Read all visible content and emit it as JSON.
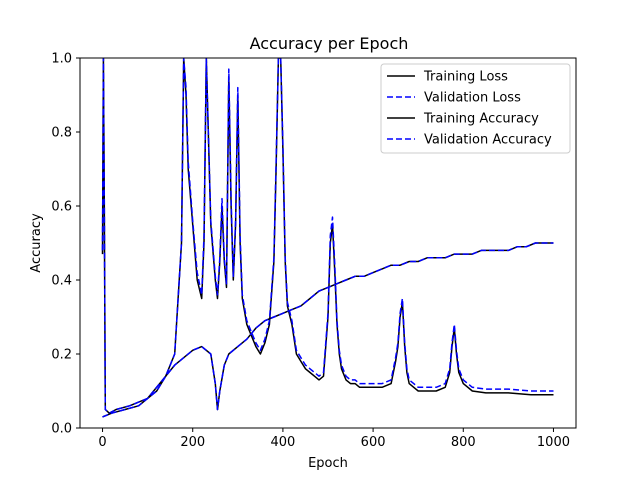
{
  "chart_data": {
    "type": "line",
    "title": "Accuracy per Epoch",
    "xlabel": "Epoch",
    "ylabel": "Accuracy",
    "xlim": [
      -50,
      1050
    ],
    "ylim": [
      0.0,
      1.0
    ],
    "xticks": [
      0,
      200,
      400,
      600,
      800,
      1000
    ],
    "yticks": [
      0.0,
      0.2,
      0.4,
      0.6,
      0.8,
      1.0
    ],
    "xtick_labels": [
      "0",
      "200",
      "400",
      "600",
      "800",
      "1000"
    ],
    "ytick_labels": [
      "0.0",
      "0.2",
      "0.4",
      "0.6",
      "0.8",
      "1.0"
    ],
    "grid": false,
    "legend_position": "top-right",
    "legend": [
      "Training Loss",
      "Validation Loss",
      "Training Accuracy",
      "Validation Accuracy"
    ],
    "series": [
      {
        "name": "Training Loss",
        "color": "#000000",
        "style": "solid",
        "x": [
          0,
          2,
          4,
          6,
          15,
          30,
          60,
          100,
          140,
          160,
          175,
          180,
          185,
          190,
          200,
          210,
          220,
          225,
          230,
          240,
          250,
          255,
          260,
          265,
          270,
          275,
          280,
          285,
          290,
          295,
          300,
          305,
          310,
          320,
          330,
          340,
          350,
          360,
          370,
          380,
          385,
          390,
          395,
          400,
          405,
          410,
          420,
          430,
          440,
          450,
          460,
          470,
          480,
          490,
          500,
          505,
          510,
          515,
          520,
          525,
          530,
          540,
          550,
          560,
          570,
          580,
          600,
          620,
          640,
          650,
          655,
          660,
          665,
          670,
          675,
          680,
          690,
          700,
          720,
          740,
          760,
          770,
          775,
          780,
          785,
          790,
          800,
          820,
          850,
          880,
          900,
          950,
          1000
        ],
        "y": [
          0.47,
          1.0,
          0.6,
          0.05,
          0.04,
          0.05,
          0.06,
          0.08,
          0.14,
          0.2,
          0.5,
          1.0,
          0.9,
          0.7,
          0.55,
          0.4,
          0.35,
          0.5,
          1.0,
          0.55,
          0.4,
          0.35,
          0.45,
          0.6,
          0.45,
          0.38,
          0.95,
          0.6,
          0.4,
          0.55,
          0.9,
          0.5,
          0.35,
          0.28,
          0.25,
          0.22,
          0.2,
          0.23,
          0.28,
          0.45,
          0.7,
          1.0,
          1.0,
          0.75,
          0.45,
          0.33,
          0.28,
          0.2,
          0.18,
          0.16,
          0.15,
          0.14,
          0.13,
          0.14,
          0.3,
          0.5,
          0.55,
          0.42,
          0.28,
          0.2,
          0.16,
          0.13,
          0.12,
          0.12,
          0.11,
          0.11,
          0.11,
          0.11,
          0.12,
          0.18,
          0.22,
          0.3,
          0.34,
          0.22,
          0.15,
          0.12,
          0.11,
          0.1,
          0.1,
          0.1,
          0.11,
          0.15,
          0.22,
          0.27,
          0.2,
          0.15,
          0.12,
          0.1,
          0.095,
          0.095,
          0.095,
          0.09,
          0.09
        ]
      },
      {
        "name": "Validation Loss",
        "color": "#0000ff",
        "style": "dashed",
        "x": [
          0,
          2,
          4,
          6,
          15,
          30,
          60,
          100,
          140,
          160,
          175,
          180,
          185,
          190,
          200,
          210,
          220,
          225,
          230,
          240,
          250,
          255,
          260,
          265,
          270,
          275,
          280,
          285,
          290,
          295,
          300,
          305,
          310,
          320,
          330,
          340,
          350,
          360,
          370,
          380,
          385,
          390,
          395,
          400,
          405,
          410,
          420,
          430,
          440,
          450,
          460,
          470,
          480,
          490,
          500,
          505,
          510,
          515,
          520,
          525,
          530,
          540,
          550,
          560,
          570,
          580,
          600,
          620,
          640,
          650,
          655,
          660,
          665,
          670,
          675,
          680,
          690,
          700,
          720,
          740,
          760,
          770,
          775,
          780,
          785,
          790,
          800,
          820,
          850,
          880,
          900,
          950,
          1000
        ],
        "y": [
          0.48,
          1.0,
          0.62,
          0.05,
          0.04,
          0.05,
          0.06,
          0.08,
          0.14,
          0.2,
          0.5,
          1.0,
          0.92,
          0.72,
          0.56,
          0.42,
          0.36,
          0.52,
          1.0,
          0.56,
          0.41,
          0.36,
          0.46,
          0.62,
          0.46,
          0.39,
          0.97,
          0.62,
          0.41,
          0.56,
          0.92,
          0.52,
          0.36,
          0.29,
          0.26,
          0.23,
          0.21,
          0.24,
          0.29,
          0.46,
          0.72,
          1.0,
          1.0,
          0.77,
          0.46,
          0.34,
          0.29,
          0.21,
          0.19,
          0.17,
          0.16,
          0.15,
          0.14,
          0.15,
          0.31,
          0.52,
          0.57,
          0.44,
          0.29,
          0.21,
          0.17,
          0.14,
          0.13,
          0.13,
          0.12,
          0.12,
          0.12,
          0.12,
          0.13,
          0.19,
          0.23,
          0.31,
          0.35,
          0.23,
          0.16,
          0.13,
          0.12,
          0.11,
          0.11,
          0.11,
          0.12,
          0.16,
          0.23,
          0.28,
          0.21,
          0.16,
          0.13,
          0.11,
          0.105,
          0.105,
          0.105,
          0.1,
          0.1
        ]
      },
      {
        "name": "Training Accuracy",
        "color": "#000000",
        "style": "solid",
        "x": [
          0,
          20,
          50,
          80,
          100,
          120,
          140,
          160,
          180,
          200,
          220,
          240,
          250,
          255,
          260,
          270,
          280,
          300,
          320,
          340,
          360,
          380,
          400,
          420,
          440,
          460,
          480,
          500,
          520,
          540,
          560,
          580,
          600,
          620,
          640,
          660,
          680,
          700,
          720,
          740,
          760,
          780,
          800,
          820,
          840,
          860,
          880,
          900,
          920,
          940,
          960,
          980,
          1000
        ],
        "y": [
          0.03,
          0.04,
          0.05,
          0.06,
          0.08,
          0.1,
          0.14,
          0.17,
          0.19,
          0.21,
          0.22,
          0.2,
          0.12,
          0.05,
          0.1,
          0.17,
          0.2,
          0.22,
          0.24,
          0.27,
          0.29,
          0.3,
          0.31,
          0.32,
          0.33,
          0.35,
          0.37,
          0.38,
          0.39,
          0.4,
          0.41,
          0.41,
          0.42,
          0.43,
          0.44,
          0.44,
          0.45,
          0.45,
          0.46,
          0.46,
          0.46,
          0.47,
          0.47,
          0.47,
          0.48,
          0.48,
          0.48,
          0.48,
          0.49,
          0.49,
          0.5,
          0.5,
          0.5
        ]
      },
      {
        "name": "Validation Accuracy",
        "color": "#0000ff",
        "style": "dashed",
        "x": [
          0,
          20,
          50,
          80,
          100,
          120,
          140,
          160,
          180,
          200,
          220,
          240,
          250,
          255,
          260,
          270,
          280,
          300,
          320,
          340,
          360,
          380,
          400,
          420,
          440,
          460,
          480,
          500,
          520,
          540,
          560,
          580,
          600,
          620,
          640,
          660,
          680,
          700,
          720,
          740,
          760,
          780,
          800,
          820,
          840,
          860,
          880,
          900,
          920,
          940,
          960,
          980,
          1000
        ],
        "y": [
          0.03,
          0.04,
          0.05,
          0.06,
          0.08,
          0.1,
          0.14,
          0.17,
          0.19,
          0.21,
          0.22,
          0.2,
          0.12,
          0.05,
          0.1,
          0.17,
          0.2,
          0.22,
          0.24,
          0.27,
          0.29,
          0.3,
          0.31,
          0.32,
          0.33,
          0.35,
          0.37,
          0.38,
          0.39,
          0.4,
          0.41,
          0.41,
          0.42,
          0.43,
          0.44,
          0.44,
          0.45,
          0.45,
          0.46,
          0.46,
          0.46,
          0.47,
          0.47,
          0.47,
          0.48,
          0.48,
          0.48,
          0.48,
          0.49,
          0.49,
          0.5,
          0.5,
          0.5
        ]
      }
    ]
  }
}
